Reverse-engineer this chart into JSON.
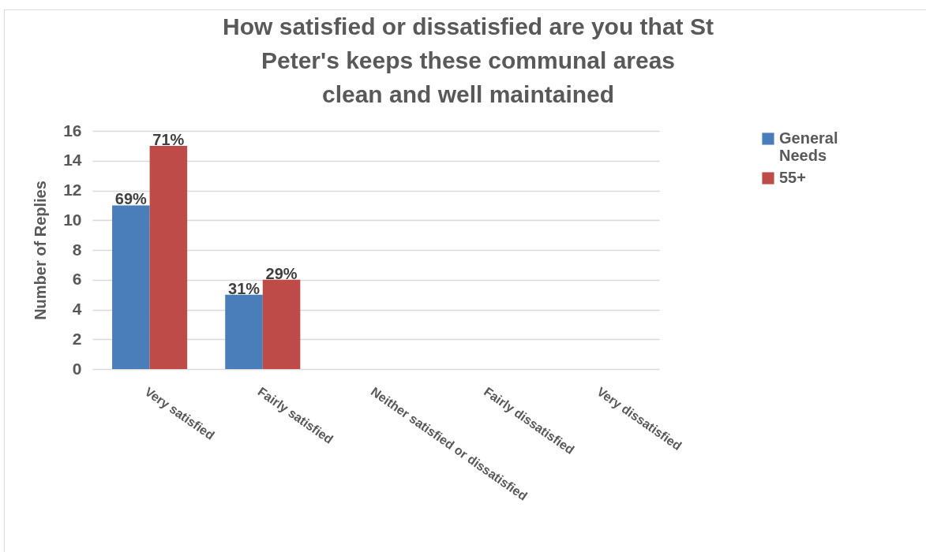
{
  "chart_data": {
    "type": "bar",
    "title": "How satisfied or dissatisfied are you that St\nPeter's keeps these communal areas\nclean and well maintained",
    "ylabel": "Number of Replies",
    "categories": [
      "Very satisfied",
      "Fairly satisfied",
      "Neither satisfied or dissatisfied",
      "Fairly dissatisfied",
      "Very dissatisfied"
    ],
    "series": [
      {
        "name": "General Needs",
        "color": "#4a7ebb",
        "values": [
          11,
          5,
          null,
          null,
          null
        ]
      },
      {
        "name": "55+",
        "color": "#be4b48",
        "values": [
          15,
          6,
          null,
          null,
          null
        ]
      }
    ],
    "annotations": [
      {
        "text": "69%",
        "x": "Very satisfied",
        "y": 11
      },
      {
        "text": "71%",
        "x": "Very satisfied",
        "y": 15
      },
      {
        "text": "31%",
        "x": "Fairly satisfied",
        "y": 5
      },
      {
        "text": "29%",
        "x": "Fairly satisfied",
        "y": 6
      }
    ],
    "ylim": [
      0,
      16
    ],
    "yticks": [
      0,
      2,
      4,
      6,
      8,
      10,
      12,
      14,
      16
    ],
    "grid": "y",
    "legend": "top right"
  }
}
